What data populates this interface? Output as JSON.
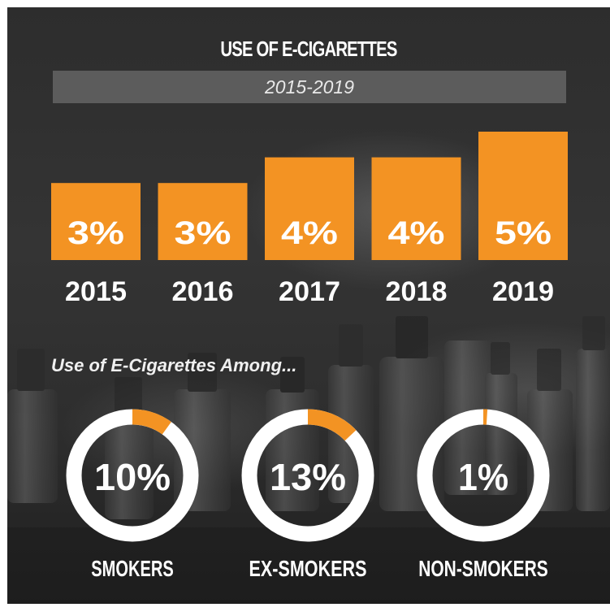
{
  "title": "USE OF E-CIGARETTES",
  "subtitle": "2015-2019",
  "section_heading": "Use of E-Cigarettes Among...",
  "colors": {
    "accent": "#f39323",
    "ring": "#ffffff",
    "background": "#2f2f2f",
    "subtitle_bar": "#5f5f5f"
  },
  "chart_data": [
    {
      "type": "bar",
      "title": "USE OF E-CIGARETTES",
      "subtitle": "2015-2019",
      "categories": [
        "2015",
        "2016",
        "2017",
        "2018",
        "2019"
      ],
      "values": [
        3,
        3,
        4,
        4,
        5
      ],
      "value_labels": [
        "3%",
        "3%",
        "4%",
        "4%",
        "5%"
      ],
      "unit": "%"
    },
    {
      "type": "pie",
      "style": "donut",
      "title": "Use of E-Cigarettes Among...",
      "categories": [
        "SMOKERS",
        "EX-SMOKERS",
        "NON-SMOKERS"
      ],
      "values": [
        10,
        13,
        1
      ],
      "value_labels": [
        "10%",
        "13%",
        "1%"
      ],
      "unit": "%"
    }
  ]
}
